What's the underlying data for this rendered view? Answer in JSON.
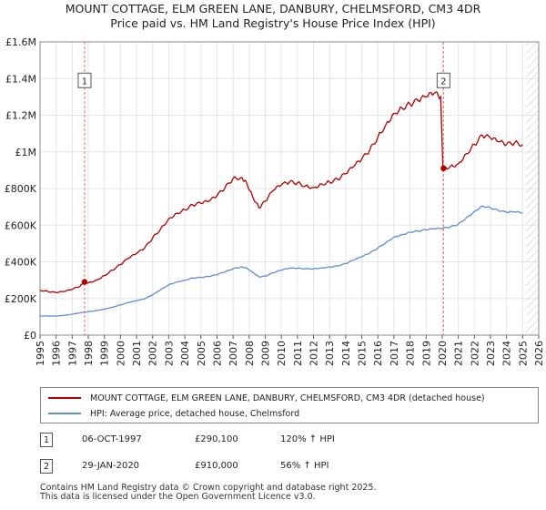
{
  "colors": {
    "property_line": "#b00000",
    "hpi_line": "#5b8fcf",
    "marker_line": "#e07070",
    "grid": "#e5e5e5",
    "hatch": "#cccccc"
  },
  "title": {
    "line1": "MOUNT COTTAGE, ELM GREEN LANE, DANBURY, CHELMSFORD, CM3 4DR",
    "line2": "Price paid vs. HM Land Registry's House Price Index (HPI)"
  },
  "chart_data": {
    "type": "line",
    "title": "MOUNT COTTAGE, ELM GREEN LANE, DANBURY, CHELMSFORD, CM3 4DR — Price paid vs. HM Land Registry's House Price Index (HPI)",
    "xlim": [
      1995,
      2026
    ],
    "ylim": [
      0,
      1600000
    ],
    "x_ticks": [
      "1995",
      "1996",
      "1997",
      "1998",
      "1999",
      "2000",
      "2001",
      "2002",
      "2003",
      "2004",
      "2005",
      "2006",
      "2007",
      "2008",
      "2009",
      "2010",
      "2011",
      "2012",
      "2013",
      "2014",
      "2015",
      "2016",
      "2017",
      "2018",
      "2019",
      "2020",
      "2021",
      "2022",
      "2023",
      "2024",
      "2025",
      "2026"
    ],
    "y_ticks": [
      {
        "value": 0,
        "label": "£0"
      },
      {
        "value": 200000,
        "label": "£200K"
      },
      {
        "value": 400000,
        "label": "£400K"
      },
      {
        "value": 600000,
        "label": "£600K"
      },
      {
        "value": 800000,
        "label": "£800K"
      },
      {
        "value": 1000000,
        "label": "£1M"
      },
      {
        "value": 1200000,
        "label": "£1.2M"
      },
      {
        "value": 1400000,
        "label": "£1.4M"
      },
      {
        "value": 1600000,
        "label": "£1.6M"
      }
    ],
    "grid": true,
    "legend_position": "below",
    "forecast_from": 2025.2,
    "series": [
      {
        "name": "MOUNT COTTAGE, ELM GREEN LANE, DANBURY, CHELMSFORD, CM3 4DR (detached house)",
        "points": [
          [
            1995.0,
            245000
          ],
          [
            1995.5,
            238000
          ],
          [
            1996.0,
            232000
          ],
          [
            1996.5,
            238000
          ],
          [
            1997.0,
            250000
          ],
          [
            1997.5,
            268000
          ],
          [
            1997.77,
            290100
          ],
          [
            1998.0,
            285000
          ],
          [
            1998.5,
            300000
          ],
          [
            1999.0,
            325000
          ],
          [
            1999.5,
            355000
          ],
          [
            2000.0,
            385000
          ],
          [
            2000.5,
            420000
          ],
          [
            2001.0,
            445000
          ],
          [
            2001.5,
            475000
          ],
          [
            2002.0,
            530000
          ],
          [
            2002.5,
            580000
          ],
          [
            2003.0,
            635000
          ],
          [
            2003.5,
            665000
          ],
          [
            2004.0,
            685000
          ],
          [
            2004.5,
            710000
          ],
          [
            2005.0,
            720000
          ],
          [
            2005.5,
            730000
          ],
          [
            2006.0,
            760000
          ],
          [
            2006.5,
            805000
          ],
          [
            2007.0,
            855000
          ],
          [
            2007.5,
            860000
          ],
          [
            2007.8,
            840000
          ],
          [
            2008.2,
            760000
          ],
          [
            2008.6,
            695000
          ],
          [
            2009.0,
            730000
          ],
          [
            2009.5,
            790000
          ],
          [
            2010.0,
            820000
          ],
          [
            2010.5,
            835000
          ],
          [
            2011.0,
            830000
          ],
          [
            2011.5,
            815000
          ],
          [
            2012.0,
            805000
          ],
          [
            2012.5,
            825000
          ],
          [
            2013.0,
            835000
          ],
          [
            2013.5,
            850000
          ],
          [
            2014.0,
            880000
          ],
          [
            2014.5,
            920000
          ],
          [
            2015.0,
            960000
          ],
          [
            2015.5,
            1010000
          ],
          [
            2016.0,
            1080000
          ],
          [
            2016.5,
            1150000
          ],
          [
            2017.0,
            1210000
          ],
          [
            2017.5,
            1240000
          ],
          [
            2018.0,
            1260000
          ],
          [
            2018.5,
            1280000
          ],
          [
            2019.0,
            1300000
          ],
          [
            2019.5,
            1320000
          ],
          [
            2019.9,
            1300000
          ],
          [
            2020.05,
            910000
          ],
          [
            2020.5,
            920000
          ],
          [
            2021.0,
            935000
          ],
          [
            2021.5,
            990000
          ],
          [
            2022.0,
            1040000
          ],
          [
            2022.5,
            1090000
          ],
          [
            2023.0,
            1075000
          ],
          [
            2023.5,
            1055000
          ],
          [
            2024.0,
            1040000
          ],
          [
            2024.5,
            1050000
          ],
          [
            2025.0,
            1040000
          ]
        ]
      },
      {
        "name": "HPI: Average price, detached house, Chelmsford",
        "points": [
          [
            1995.0,
            105000
          ],
          [
            1995.5,
            104000
          ],
          [
            1996.0,
            104000
          ],
          [
            1996.5,
            108000
          ],
          [
            1997.0,
            114000
          ],
          [
            1997.5,
            122000
          ],
          [
            1998.0,
            128000
          ],
          [
            1998.5,
            134000
          ],
          [
            1999.0,
            142000
          ],
          [
            1999.5,
            152000
          ],
          [
            2000.0,
            165000
          ],
          [
            2000.5,
            178000
          ],
          [
            2001.0,
            188000
          ],
          [
            2001.5,
            198000
          ],
          [
            2002.0,
            220000
          ],
          [
            2002.5,
            248000
          ],
          [
            2003.0,
            275000
          ],
          [
            2003.5,
            290000
          ],
          [
            2004.0,
            300000
          ],
          [
            2004.5,
            312000
          ],
          [
            2005.0,
            315000
          ],
          [
            2005.5,
            320000
          ],
          [
            2006.0,
            330000
          ],
          [
            2006.5,
            345000
          ],
          [
            2007.0,
            362000
          ],
          [
            2007.5,
            372000
          ],
          [
            2007.8,
            368000
          ],
          [
            2008.2,
            345000
          ],
          [
            2008.6,
            318000
          ],
          [
            2009.0,
            322000
          ],
          [
            2009.5,
            340000
          ],
          [
            2010.0,
            355000
          ],
          [
            2010.5,
            365000
          ],
          [
            2011.0,
            365000
          ],
          [
            2011.5,
            362000
          ],
          [
            2012.0,
            362000
          ],
          [
            2012.5,
            367000
          ],
          [
            2013.0,
            372000
          ],
          [
            2013.5,
            378000
          ],
          [
            2014.0,
            390000
          ],
          [
            2014.5,
            410000
          ],
          [
            2015.0,
            428000
          ],
          [
            2015.5,
            448000
          ],
          [
            2016.0,
            475000
          ],
          [
            2016.5,
            505000
          ],
          [
            2017.0,
            535000
          ],
          [
            2017.5,
            548000
          ],
          [
            2018.0,
            562000
          ],
          [
            2018.5,
            568000
          ],
          [
            2019.0,
            575000
          ],
          [
            2019.5,
            580000
          ],
          [
            2020.0,
            582000
          ],
          [
            2020.5,
            590000
          ],
          [
            2021.0,
            605000
          ],
          [
            2021.5,
            640000
          ],
          [
            2022.0,
            675000
          ],
          [
            2022.5,
            705000
          ],
          [
            2023.0,
            695000
          ],
          [
            2023.5,
            680000
          ],
          [
            2024.0,
            670000
          ],
          [
            2024.5,
            672000
          ],
          [
            2025.0,
            668000
          ]
        ]
      }
    ],
    "annotations": [
      {
        "label": "1",
        "x": 1997.77,
        "y": 290100
      },
      {
        "label": "2",
        "x": 2020.08,
        "y": 910000
      }
    ]
  },
  "legend": {
    "property_label": "MOUNT COTTAGE, ELM GREEN LANE, DANBURY, CHELMSFORD, CM3 4DR (detached house)",
    "hpi_label": "HPI: Average price, detached house, Chelmsford"
  },
  "transactions": [
    {
      "num": "1",
      "date": "06-OCT-1997",
      "price": "£290,100",
      "hpi": "120% ↑ HPI"
    },
    {
      "num": "2",
      "date": "29-JAN-2020",
      "price": "£910,000",
      "hpi": "56% ↑ HPI"
    }
  ],
  "footer": {
    "line1": "Contains HM Land Registry data © Crown copyright and database right 2025.",
    "line2": "This data is licensed under the Open Government Licence v3.0."
  }
}
